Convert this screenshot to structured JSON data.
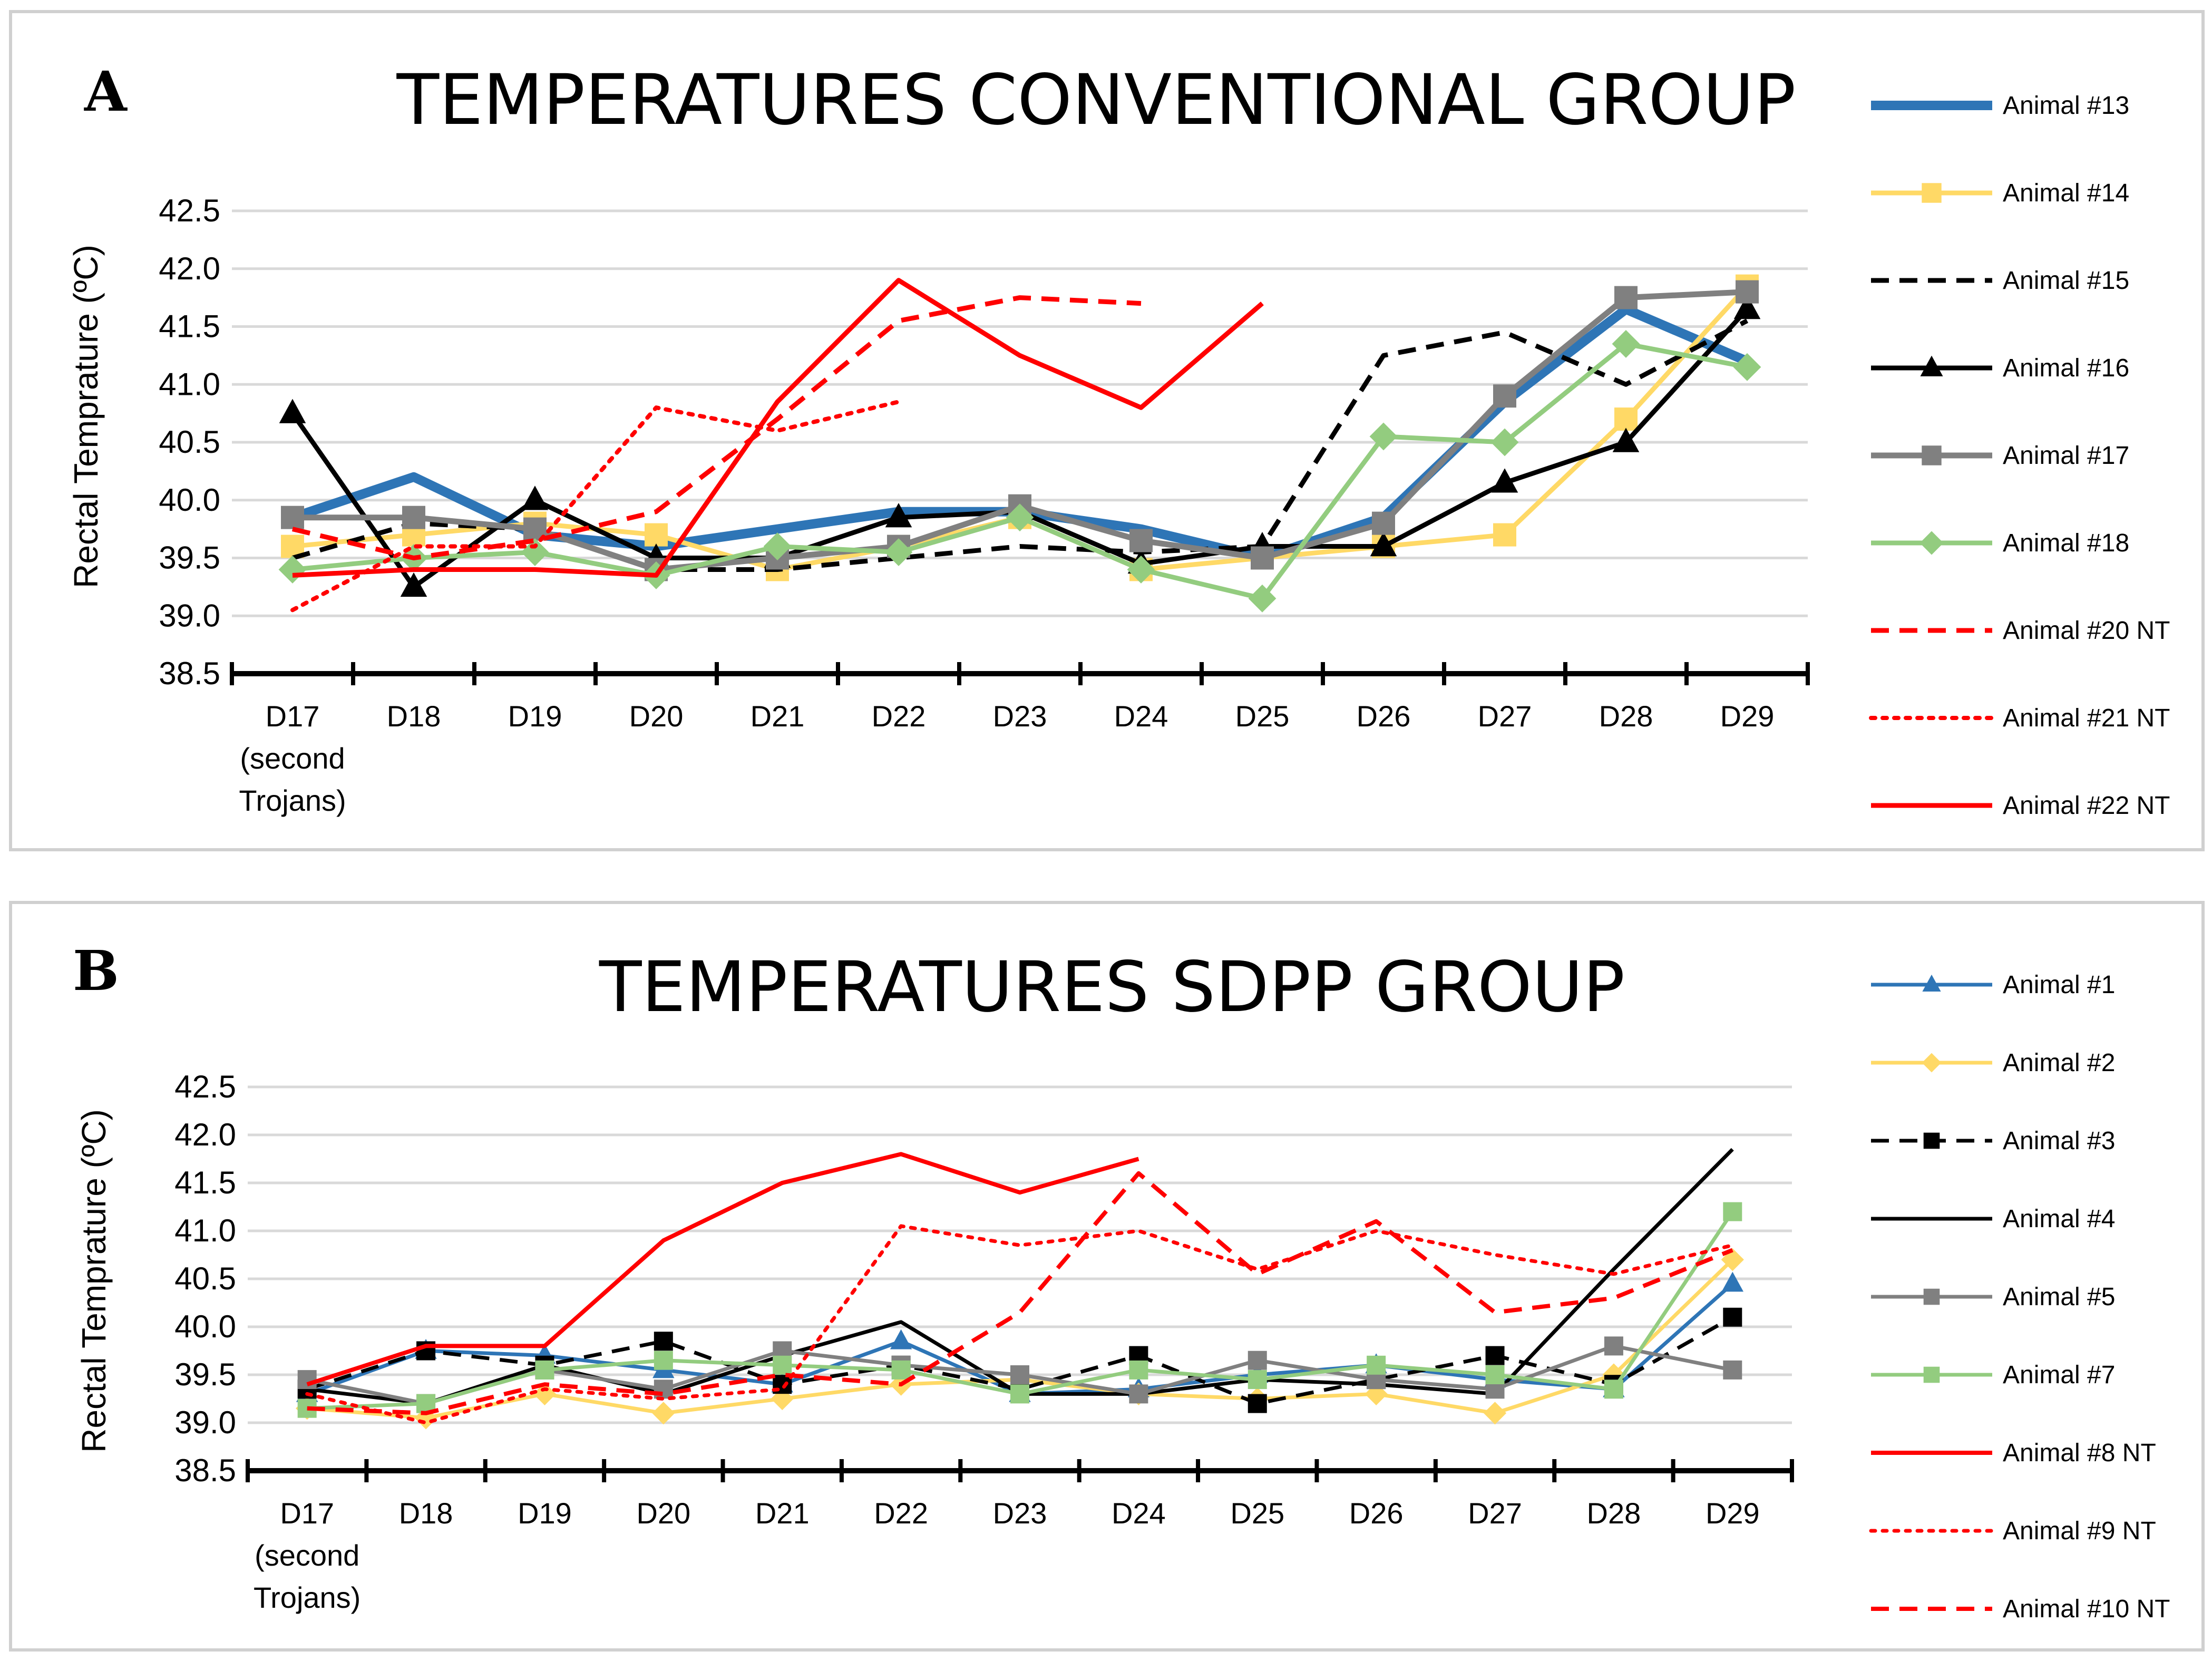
{
  "chart_data": [
    {
      "panel_letter": "A",
      "type": "line",
      "title": "TEMPERATURES CONVENTIONAL GROUP",
      "ylabel": "Rectal Temprature (ºC)",
      "xlabel": "",
      "ylim": [
        38.5,
        42.5
      ],
      "yticks": [
        "38.5",
        "39.0",
        "39.5",
        "40.0",
        "40.5",
        "41.0",
        "41.5",
        "42.0",
        "42.5"
      ],
      "grid": "horizontal",
      "legend": "right",
      "categories": [
        "D17",
        "D18",
        "D19",
        "D20",
        "D21",
        "D22",
        "D23",
        "D24",
        "D25",
        "D26",
        "D27",
        "D28",
        "D29"
      ],
      "category_notes": {
        "D17": [
          "(second",
          "Trojans)"
        ]
      },
      "series": [
        {
          "name": "Animal #13",
          "color": "#2e75b6",
          "dash": "solid",
          "marker": "none",
          "width": 18,
          "values": [
            39.85,
            40.2,
            39.7,
            39.6,
            39.75,
            39.9,
            39.9,
            39.75,
            39.5,
            39.85,
            40.85,
            41.65,
            41.2
          ]
        },
        {
          "name": "Animal #14",
          "color": "#ffd966",
          "dash": "solid",
          "marker": "square",
          "width": 9,
          "values": [
            39.6,
            39.7,
            39.8,
            39.7,
            39.4,
            39.6,
            39.85,
            39.4,
            39.5,
            39.6,
            39.7,
            40.7,
            41.85
          ]
        },
        {
          "name": "Animal #15",
          "color": "#000000",
          "dash": "dash",
          "marker": "none",
          "width": 9,
          "values": [
            39.5,
            39.8,
            39.75,
            39.4,
            39.4,
            39.5,
            39.6,
            39.55,
            39.6,
            41.25,
            41.45,
            41.0,
            41.55
          ]
        },
        {
          "name": "Animal #16",
          "color": "#000000",
          "dash": "solid",
          "marker": "triangle",
          "width": 9,
          "values": [
            40.75,
            39.25,
            40.0,
            39.5,
            39.5,
            39.85,
            39.9,
            39.45,
            39.6,
            39.6,
            40.15,
            40.5,
            41.65
          ]
        },
        {
          "name": "Animal #17",
          "color": "#808080",
          "dash": "solid",
          "marker": "square",
          "width": 11,
          "values": [
            39.85,
            39.85,
            39.75,
            39.4,
            39.5,
            39.6,
            39.95,
            39.65,
            39.5,
            39.8,
            40.9,
            41.75,
            41.8
          ]
        },
        {
          "name": "Animal #18",
          "color": "#93cc7f",
          "dash": "solid",
          "marker": "diamond",
          "width": 9,
          "values": [
            39.4,
            39.5,
            39.55,
            39.35,
            39.6,
            39.55,
            39.85,
            39.4,
            39.15,
            40.55,
            40.5,
            41.35,
            41.15
          ]
        },
        {
          "name": "Animal #20 NT",
          "color": "#ff0000",
          "dash": "dash",
          "marker": "none",
          "width": 9,
          "values": [
            39.75,
            39.5,
            39.65,
            39.9,
            40.7,
            41.55,
            41.75,
            41.7,
            null,
            null,
            null,
            null,
            null
          ]
        },
        {
          "name": "Animal #21 NT",
          "color": "#ff0000",
          "dash": "dot",
          "marker": "none",
          "width": 8,
          "values": [
            39.05,
            39.6,
            39.6,
            40.8,
            40.6,
            40.85,
            null,
            null,
            null,
            null,
            null,
            null,
            null
          ]
        },
        {
          "name": "Animal #22 NT",
          "color": "#ff0000",
          "dash": "solid",
          "marker": "none",
          "width": 9,
          "values": [
            39.35,
            39.4,
            39.4,
            39.35,
            40.85,
            41.9,
            41.25,
            40.8,
            41.7,
            null,
            null,
            null,
            null
          ]
        }
      ]
    },
    {
      "panel_letter": "B",
      "type": "line",
      "title": "TEMPERATURES SDPP GROUP",
      "ylabel": "Rectal Temprature (ºC)",
      "xlabel": "",
      "ylim": [
        38.5,
        42.5
      ],
      "yticks": [
        "38.5",
        "39.0",
        "39.5",
        "40.0",
        "40.5",
        "41.0",
        "41.5",
        "42.0",
        "42.5"
      ],
      "grid": "horizontal",
      "legend": "right",
      "categories": [
        "D17",
        "D18",
        "D19",
        "D20",
        "D21",
        "D22",
        "D23",
        "D24",
        "D25",
        "D26",
        "D27",
        "D28",
        "D29"
      ],
      "category_notes": {
        "D17": [
          "(second",
          "Trojans)"
        ]
      },
      "series": [
        {
          "name": "Animal #1",
          "color": "#2e75b6",
          "dash": "solid",
          "marker": "triangle",
          "width": 7,
          "values": [
            39.3,
            39.75,
            39.7,
            39.55,
            39.4,
            39.85,
            39.3,
            39.35,
            39.5,
            39.6,
            39.45,
            39.35,
            40.45
          ]
        },
        {
          "name": "Animal #2",
          "color": "#ffd966",
          "dash": "solid",
          "marker": "diamond",
          "width": 7,
          "values": [
            39.15,
            39.05,
            39.3,
            39.1,
            39.25,
            39.4,
            39.45,
            39.3,
            39.25,
            39.3,
            39.1,
            39.5,
            40.7
          ]
        },
        {
          "name": "Animal #3",
          "color": "#000000",
          "dash": "dash",
          "marker": "square",
          "width": 7,
          "values": [
            39.35,
            39.75,
            39.6,
            39.85,
            39.4,
            39.6,
            39.35,
            39.7,
            39.2,
            39.45,
            39.7,
            39.4,
            40.1
          ]
        },
        {
          "name": "Animal #4",
          "color": "#000000",
          "dash": "solid",
          "marker": "none",
          "width": 7,
          "values": [
            39.35,
            39.2,
            39.6,
            39.3,
            39.7,
            40.05,
            39.3,
            39.3,
            39.45,
            39.4,
            39.3,
            40.6,
            41.85
          ]
        },
        {
          "name": "Animal #5",
          "color": "#808080",
          "dash": "solid",
          "marker": "square",
          "width": 7,
          "values": [
            39.45,
            39.2,
            39.55,
            39.35,
            39.75,
            39.6,
            39.5,
            39.3,
            39.65,
            39.45,
            39.35,
            39.8,
            39.55
          ]
        },
        {
          "name": "Animal #7",
          "color": "#93cc7f",
          "dash": "solid",
          "marker": "square",
          "width": 7,
          "values": [
            39.15,
            39.2,
            39.55,
            39.65,
            39.6,
            39.55,
            39.3,
            39.55,
            39.45,
            39.6,
            39.5,
            39.35,
            41.2
          ]
        },
        {
          "name": "Animal #8 NT",
          "color": "#ff0000",
          "dash": "solid",
          "marker": "none",
          "width": 8,
          "values": [
            39.4,
            39.8,
            39.8,
            40.9,
            41.5,
            41.8,
            41.4,
            41.75,
            null,
            null,
            null,
            null,
            null
          ]
        },
        {
          "name": "Animal #9 NT",
          "color": "#ff0000",
          "dash": "dot",
          "marker": "none",
          "width": 7,
          "values": [
            39.3,
            39.0,
            39.35,
            39.25,
            39.35,
            41.05,
            40.85,
            41.0,
            40.6,
            41.0,
            40.75,
            40.55,
            40.85
          ]
        },
        {
          "name": "Animal #10 NT",
          "color": "#ff0000",
          "dash": "dash",
          "marker": "none",
          "width": 8,
          "values": [
            39.15,
            39.1,
            39.4,
            39.3,
            39.5,
            39.4,
            40.15,
            41.6,
            40.55,
            41.1,
            40.15,
            40.3,
            40.8
          ]
        }
      ]
    }
  ]
}
